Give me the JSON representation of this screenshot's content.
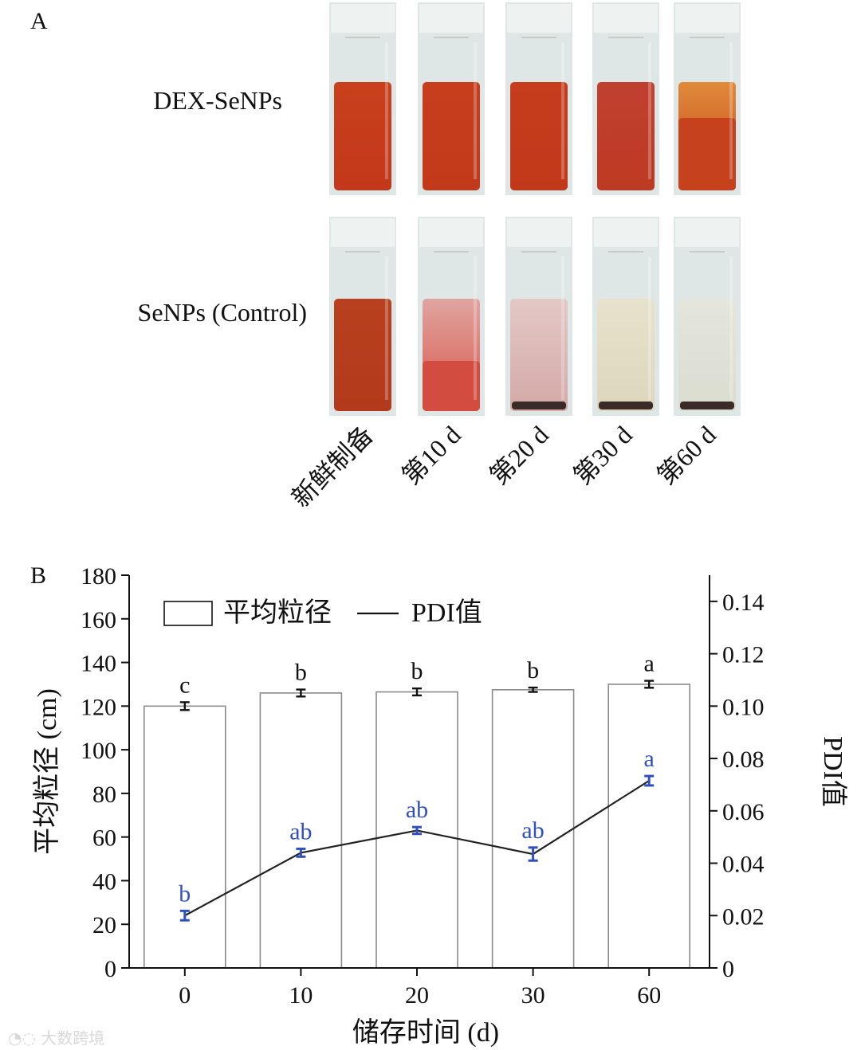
{
  "panel_a": {
    "letter": "A",
    "rows": [
      {
        "label": "DEX-SeNPs",
        "vials": [
          {
            "liquid_top": "#c8401c",
            "liquid_bottom": "#c3381a",
            "sediment": false,
            "transparent": false
          },
          {
            "liquid_top": "#c63e1c",
            "liquid_bottom": "#c23a1a",
            "sediment": false,
            "transparent": false
          },
          {
            "liquid_top": "#c53d1c",
            "liquid_bottom": "#c1391a",
            "sediment": false,
            "transparent": false
          },
          {
            "liquid_top": "#c04030",
            "liquid_bottom": "#bd3a22",
            "sediment": false,
            "transparent": false
          },
          {
            "liquid_top": "#e08a3a",
            "liquid_bottom": "#c6421c",
            "sediment": false,
            "transparent": false
          }
        ]
      },
      {
        "label": "SeNPs (Control)",
        "vials": [
          {
            "liquid_top": "#b8401e",
            "liquid_bottom": "#b33a1c",
            "sediment": false,
            "transparent": false
          },
          {
            "liquid_top": "#e0a5a0",
            "liquid_bottom": "#d9544a",
            "sediment": false,
            "transparent": false
          },
          {
            "liquid_top": "#e3c8c6",
            "liquid_bottom": "#d4a9a6",
            "sediment": true,
            "transparent": false
          },
          {
            "liquid_top": "#e7e2cc",
            "liquid_bottom": "#ddd6bd",
            "sediment": true,
            "transparent": false
          },
          {
            "liquid_top": "#e4e6dc",
            "liquid_bottom": "#dadcd0",
            "sediment": true,
            "transparent": false
          }
        ]
      }
    ],
    "column_labels": [
      "新鲜制备",
      "第10 d",
      "第20 d",
      "第30 d",
      "第60 d"
    ]
  },
  "chart_data": {
    "type": "bar",
    "panel_letter": "B",
    "categories": [
      "0",
      "10",
      "20",
      "30",
      "60"
    ],
    "xlabel": "储存时间 (d)",
    "ylabel": "平均粒径 (cm)",
    "y2label": "PDI值",
    "ylim": [
      0,
      180
    ],
    "yticks": [
      0,
      20,
      40,
      60,
      80,
      100,
      120,
      140,
      160,
      180
    ],
    "y2lim": [
      0,
      0.15
    ],
    "y2ticks": [
      0,
      0.02,
      0.04,
      0.06,
      0.08,
      0.1,
      0.12,
      0.14
    ],
    "y2ticklabels": [
      "0",
      "0.02",
      "0.04",
      "0.06",
      "0.08",
      "0.10",
      "0.12",
      "0.14"
    ],
    "legend": {
      "placement": "top-left",
      "bar_label": "平均粒径",
      "line_label": "PDI值"
    },
    "series": [
      {
        "name": "平均粒径",
        "kind": "bar",
        "axis": "left",
        "values": [
          120,
          126,
          126.5,
          127.5,
          130
        ],
        "errors": [
          1.8,
          1.6,
          1.6,
          1.0,
          1.6
        ],
        "letters": [
          "c",
          "b",
          "b",
          "b",
          "a"
        ]
      },
      {
        "name": "PDI值",
        "kind": "line",
        "axis": "right",
        "values": [
          0.02,
          0.044,
          0.0525,
          0.0435,
          0.0715
        ],
        "errors": [
          0.0018,
          0.0015,
          0.0013,
          0.0025,
          0.0018
        ],
        "letters": [
          "b",
          "ab",
          "ab",
          "ab",
          "a"
        ]
      }
    ],
    "colors": {
      "bar_fill": "#ffffff",
      "bar_stroke": "#8a8a8a",
      "line": "#222222",
      "pdi_marks": "#3050c0",
      "error_bar_size": "#111111"
    }
  },
  "watermark": "大数跨境"
}
